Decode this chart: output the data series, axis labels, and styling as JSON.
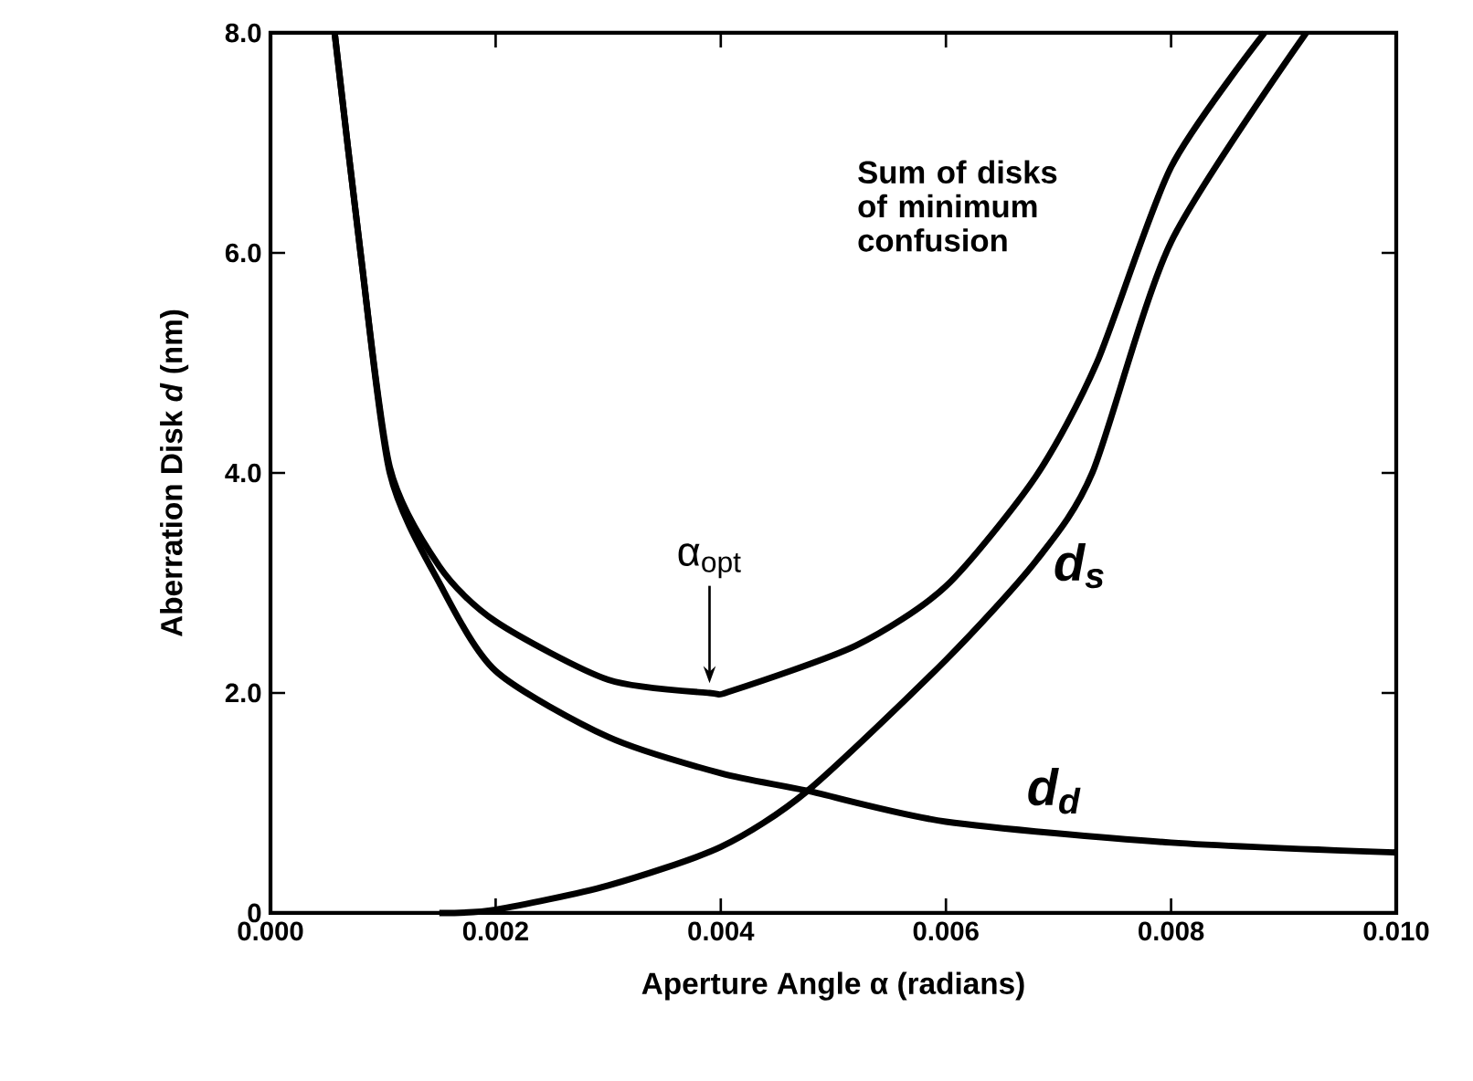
{
  "chart_data": {
    "type": "line",
    "xlabel": "Aperture Angle α (radians)",
    "ylabel": "Aberration Disk *d* (nm)",
    "xlim": [
      0,
      0.01
    ],
    "ylim": [
      0,
      8
    ],
    "xticks": [
      {
        "value": 0,
        "label": "0.000"
      },
      {
        "value": 0.002,
        "label": "0.002"
      },
      {
        "value": 0.004,
        "label": "0.004"
      },
      {
        "value": 0.006,
        "label": "0.006"
      },
      {
        "value": 0.008,
        "label": "0.008"
      },
      {
        "value": 0.01,
        "label": "0.010"
      }
    ],
    "yticks": [
      0,
      {
        "value": 2,
        "label": "2.0"
      },
      {
        "value": 4,
        "label": "4.0"
      },
      {
        "value": 6,
        "label": "6.0"
      },
      {
        "value": 8,
        "label": "8.0"
      }
    ],
    "series": [
      {
        "name": "Sum of disks of minimum confusion",
        "color": "#000000",
        "x": [
          0.00057,
          0.0008,
          0.00106,
          0.0015,
          0.002,
          0.003,
          0.0039,
          0.0041,
          0.0052,
          0.006,
          0.0068,
          0.00734,
          0.008,
          0.00883
        ],
        "values": [
          8.0,
          6.0,
          4.05,
          3.15,
          2.65,
          2.12,
          2.0,
          2.02,
          2.43,
          2.97,
          3.97,
          5.0,
          6.78,
          8.0
        ]
      },
      {
        "name": "d$_{s}$",
        "color": "#000000",
        "x": [
          0.0015,
          0.002,
          0.003,
          0.004,
          0.00477,
          0.006,
          0.0068,
          0.0073,
          0.008,
          0.0092
        ],
        "values": [
          0,
          0.03,
          0.25,
          0.6,
          1.11,
          2.3,
          3.2,
          4.0,
          6.1,
          8.0
        ]
      },
      {
        "name": "d$_{d}$",
        "color": "#000000",
        "x": [
          0.00057,
          0.0008,
          0.00106,
          0.0015,
          0.002,
          0.003,
          0.004,
          0.00477,
          0.006,
          0.008,
          0.01
        ],
        "values": [
          8.0,
          6.0,
          4.0,
          3.0,
          2.2,
          1.6,
          1.27,
          1.11,
          0.83,
          0.64,
          0.55
        ]
      }
    ],
    "annotations": [
      {
        "text": "α$_{opt}$",
        "x": 0.0039,
        "y": 2.0
      }
    ]
  }
}
